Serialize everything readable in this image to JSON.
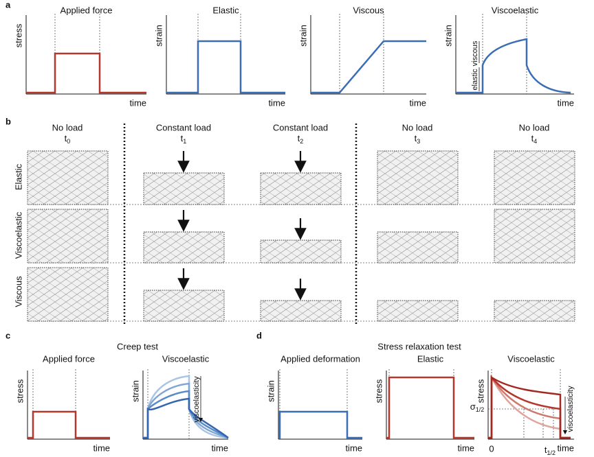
{
  "panels": {
    "a": {
      "label": "a",
      "plots": [
        {
          "title": "Applied force",
          "ylabel": "stress",
          "xlabel": "time"
        },
        {
          "title": "Elastic",
          "ylabel": "strain",
          "xlabel": "time"
        },
        {
          "title": "Viscous",
          "ylabel": "strain",
          "xlabel": "time"
        },
        {
          "title": "Viscoelastic",
          "ylabel": "strain",
          "xlabel": "time"
        }
      ],
      "annotations": [
        "elastic",
        "viscous"
      ]
    },
    "b": {
      "label": "b",
      "columns": [
        {
          "title": "No load",
          "time": {
            "base": "t",
            "sub": "0"
          }
        },
        {
          "title": "Constant load",
          "time": {
            "base": "t",
            "sub": "1"
          }
        },
        {
          "title": "Constant load",
          "time": {
            "base": "t",
            "sub": "2"
          }
        },
        {
          "title": "No load",
          "time": {
            "base": "t",
            "sub": "3"
          }
        },
        {
          "title": "No load",
          "time": {
            "base": "t",
            "sub": "4"
          }
        }
      ],
      "rows": [
        "Elastic",
        "Viscoelastic",
        "Viscous"
      ]
    },
    "c": {
      "label": "c",
      "title": "Creep test",
      "plots": [
        {
          "title": "Applied force",
          "ylabel": "stress",
          "xlabel": "time"
        },
        {
          "title": "Viscoelastic",
          "ylabel": "strain",
          "xlabel": "time"
        }
      ],
      "annotation": "viscoelasticity"
    },
    "d": {
      "label": "d",
      "title": "Stress relaxation test",
      "plots": [
        {
          "title": "Applied deformation",
          "ylabel": "strain",
          "xlabel": "time"
        },
        {
          "title": "Elastic",
          "ylabel": "stress",
          "xlabel": "time"
        },
        {
          "title": "Viscoelastic",
          "ylabel": "stress",
          "xlabel": "time"
        }
      ],
      "annotation": "viscoelasticity",
      "sigma": {
        "base": "σ",
        "sub": "1/2"
      },
      "origin": "0",
      "thalf": {
        "base": "t",
        "sub": "1/2"
      }
    }
  }
}
